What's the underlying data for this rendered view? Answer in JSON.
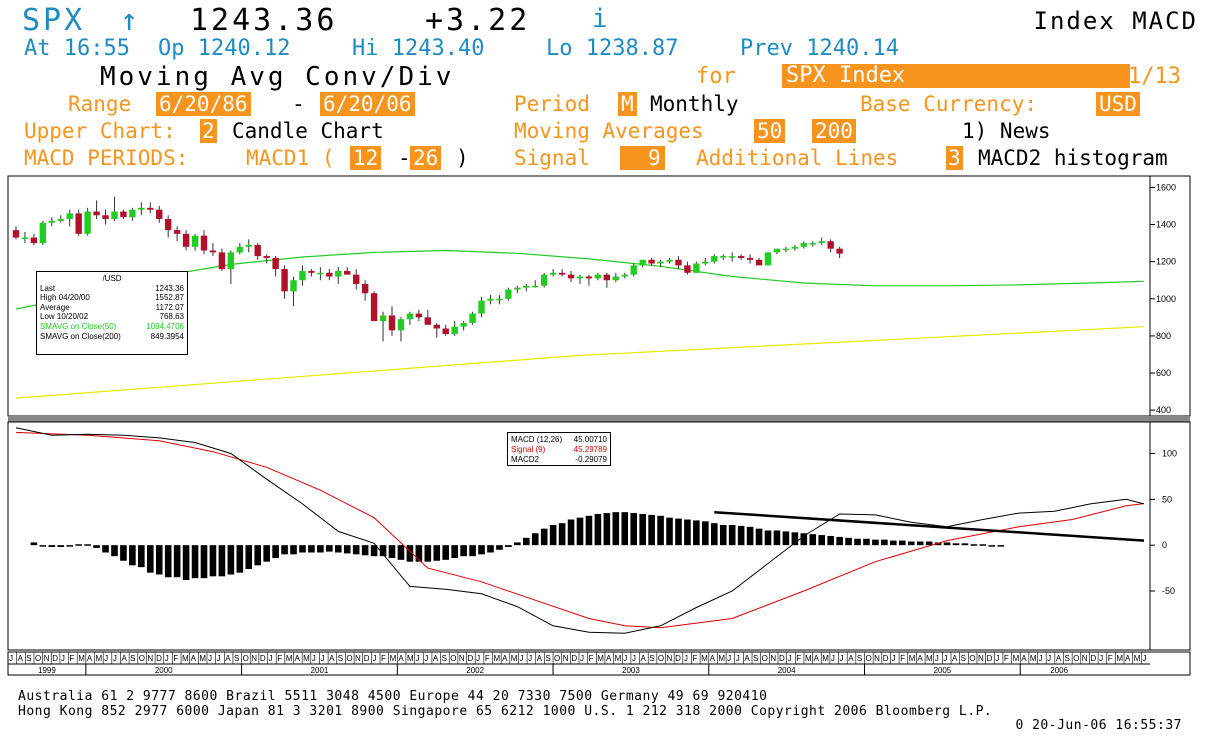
{
  "header": {
    "ticker": "SPX",
    "arrow": "↑",
    "last": "1243.36",
    "change": "+3.22",
    "info_icon": "i",
    "right_title": "Index  MACD",
    "time": "At 16:55",
    "open": "Op 1240.12",
    "high": "Hi 1243.40",
    "low": "Lo 1238.87",
    "prev": "Prev 1240.14"
  },
  "title": {
    "main": "Moving Avg Conv/Div",
    "for": "for",
    "security": "SPX Index",
    "page": "1/13"
  },
  "settings": {
    "range_label": "Range",
    "range_start": "6/20/86",
    "range_dash": "-",
    "range_end": "6/20/06",
    "period_label": "Period",
    "period_code": "M",
    "period_value": "Monthly",
    "currency_label": "Base Currency:",
    "currency_value": "USD",
    "upper_label": "Upper Chart:",
    "upper_code": "2",
    "upper_value": "Candle Chart",
    "ma_label": "Moving Averages",
    "ma1": "50",
    "ma2": "200",
    "news": "1) News",
    "macd_label": "MACD PERIODS:",
    "macd1_label": "MACD1 (",
    "macd_p1": "12",
    "macd_dash": "-",
    "macd_p2": "26",
    "macd_close": ")",
    "signal_label": "Signal",
    "signal_value": "9",
    "addl_label": "Additional Lines",
    "addl_code": "3",
    "addl_value": "MACD2 histogram"
  },
  "upper_legend": {
    "title": "/USD",
    "rows": [
      {
        "label": "Last",
        "value": "1243.36",
        "color": "#000000"
      },
      {
        "label": "High  04/20/00",
        "value": "1552.87",
        "color": "#000000"
      },
      {
        "label": "Average",
        "value": "1172.07",
        "color": "#000000"
      },
      {
        "label": "Low  10/20/02",
        "value": "768.63",
        "color": "#000000"
      },
      {
        "label": "SMAVG on Close(50)",
        "value": "1094.4706",
        "color": "#22cc22"
      },
      {
        "label": "SMAVG on Close(200)",
        "value": "849.3954",
        "color": "#000000"
      }
    ]
  },
  "lower_legend": {
    "rows": [
      {
        "label": "MACD (12,26)",
        "value": "45.00710",
        "color": "#000000"
      },
      {
        "label": "Signal (9)",
        "value": "45.29789",
        "color": "#dd0000"
      },
      {
        "label": "MACD2",
        "value": "-0.29079",
        "color": "#000000"
      }
    ]
  },
  "footer": {
    "line1": "Australia 61 2 9777 8600          Brazil 5511 3048 4500          Europe 44 20 7330 7500          Germany 49 69 920410",
    "line2": "Hong Kong 852 2977 6000 Japan 81 3 3201 8900 Singapore 65 6212 1000 U.S. 1 212 318 2000 Copyright 2006 Bloomberg L.P.",
    "line3": "0 20-Jun-06 16:55:37"
  },
  "chart_data": [
    {
      "type": "candlestick",
      "title": "",
      "ylim": [
        390,
        1640
      ],
      "yticks": [
        400,
        600,
        800,
        1000,
        1200,
        1400,
        1600
      ],
      "x_start": "1999-07",
      "colors": {
        "up": "#22cc22",
        "down": "#b0102a",
        "sma50": "#22cc22",
        "sma200": "#e8e800"
      },
      "candles": [
        [
          1370,
          1390,
          1320,
          1330
        ],
        [
          1330,
          1360,
          1300,
          1330
        ],
        [
          1330,
          1350,
          1290,
          1300
        ],
        [
          1300,
          1420,
          1290,
          1410
        ],
        [
          1410,
          1440,
          1390,
          1420
        ],
        [
          1420,
          1450,
          1410,
          1430
        ],
        [
          1430,
          1480,
          1390,
          1460
        ],
        [
          1460,
          1480,
          1340,
          1350
        ],
        [
          1350,
          1490,
          1340,
          1470
        ],
        [
          1470,
          1530,
          1430,
          1450
        ],
        [
          1450,
          1480,
          1400,
          1430
        ],
        [
          1430,
          1550,
          1420,
          1470
        ],
        [
          1470,
          1480,
          1430,
          1440
        ],
        [
          1440,
          1490,
          1420,
          1480
        ],
        [
          1480,
          1520,
          1450,
          1490
        ],
        [
          1490,
          1520,
          1460,
          1480
        ],
        [
          1480,
          1500,
          1410,
          1430
        ],
        [
          1430,
          1450,
          1330,
          1370
        ],
        [
          1370,
          1390,
          1310,
          1350
        ],
        [
          1350,
          1370,
          1260,
          1280
        ],
        [
          1280,
          1350,
          1260,
          1340
        ],
        [
          1340,
          1370,
          1240,
          1260
        ],
        [
          1260,
          1300,
          1230,
          1250
        ],
        [
          1250,
          1270,
          1150,
          1160
        ],
        [
          1160,
          1260,
          1080,
          1250
        ],
        [
          1250,
          1300,
          1240,
          1280
        ],
        [
          1280,
          1320,
          1250,
          1290
        ],
        [
          1290,
          1300,
          1210,
          1230
        ],
        [
          1230,
          1240,
          1190,
          1220
        ],
        [
          1220,
          1230,
          1120,
          1160
        ],
        [
          1160,
          1180,
          1000,
          1040
        ],
        [
          1040,
          1120,
          960,
          1100
        ],
        [
          1100,
          1180,
          1070,
          1150
        ],
        [
          1150,
          1160,
          1120,
          1140
        ],
        [
          1140,
          1170,
          1100,
          1140
        ],
        [
          1140,
          1160,
          1100,
          1120
        ],
        [
          1120,
          1170,
          1080,
          1150
        ],
        [
          1150,
          1170,
          1130,
          1130
        ],
        [
          1130,
          1160,
          1050,
          1080
        ],
        [
          1080,
          1100,
          990,
          1030
        ],
        [
          1030,
          1040,
          880,
          880
        ],
        [
          880,
          930,
          770,
          910
        ],
        [
          910,
          960,
          800,
          830
        ],
        [
          830,
          900,
          770,
          890
        ],
        [
          890,
          930,
          860,
          920
        ],
        [
          920,
          940,
          880,
          900
        ],
        [
          900,
          940,
          860,
          860
        ],
        [
          860,
          870,
          790,
          840
        ],
        [
          840,
          860,
          800,
          810
        ],
        [
          810,
          880,
          800,
          850
        ],
        [
          850,
          880,
          830,
          870
        ],
        [
          870,
          930,
          860,
          920
        ],
        [
          920,
          1010,
          900,
          990
        ],
        [
          990,
          1020,
          970,
          1000
        ],
        [
          1000,
          1020,
          970,
          1000
        ],
        [
          1000,
          1060,
          990,
          1050
        ],
        [
          1050,
          1070,
          1030,
          1060
        ],
        [
          1060,
          1080,
          1040,
          1070
        ],
        [
          1070,
          1100,
          1060,
          1070
        ],
        [
          1070,
          1140,
          1060,
          1130
        ],
        [
          1130,
          1160,
          1120,
          1140
        ],
        [
          1140,
          1160,
          1120,
          1130
        ],
        [
          1130,
          1150,
          1090,
          1110
        ],
        [
          1110,
          1130,
          1080,
          1120
        ],
        [
          1120,
          1130,
          1070,
          1110
        ],
        [
          1110,
          1140,
          1100,
          1130
        ],
        [
          1130,
          1140,
          1060,
          1100
        ],
        [
          1100,
          1140,
          1090,
          1120
        ],
        [
          1120,
          1140,
          1110,
          1130
        ],
        [
          1130,
          1190,
          1120,
          1180
        ],
        [
          1180,
          1210,
          1170,
          1210
        ],
        [
          1210,
          1220,
          1180,
          1190
        ],
        [
          1190,
          1210,
          1170,
          1200
        ],
        [
          1200,
          1220,
          1190,
          1210
        ],
        [
          1210,
          1230,
          1160,
          1180
        ],
        [
          1180,
          1200,
          1130,
          1140
        ],
        [
          1140,
          1200,
          1140,
          1190
        ],
        [
          1190,
          1220,
          1180,
          1200
        ],
        [
          1200,
          1240,
          1190,
          1230
        ],
        [
          1230,
          1240,
          1210,
          1230
        ],
        [
          1230,
          1250,
          1200,
          1230
        ],
        [
          1230,
          1240,
          1210,
          1220
        ],
        [
          1220,
          1240,
          1190,
          1210
        ],
        [
          1210,
          1220,
          1180,
          1180
        ],
        [
          1180,
          1250,
          1180,
          1250
        ],
        [
          1250,
          1270,
          1240,
          1270
        ],
        [
          1270,
          1280,
          1250,
          1270
        ],
        [
          1270,
          1290,
          1260,
          1280
        ],
        [
          1280,
          1310,
          1270,
          1300
        ],
        [
          1300,
          1310,
          1280,
          1300
        ],
        [
          1300,
          1330,
          1290,
          1310
        ],
        [
          1310,
          1320,
          1250,
          1270
        ],
        [
          1270,
          1280,
          1220,
          1243.36
        ]
      ],
      "sma50": [
        [
          0,
          945
        ],
        [
          8,
          1020
        ],
        [
          16,
          1120
        ],
        [
          24,
          1185
        ],
        [
          32,
          1225
        ],
        [
          40,
          1250
        ],
        [
          48,
          1260
        ],
        [
          56,
          1245
        ],
        [
          64,
          1215
        ],
        [
          72,
          1175
        ],
        [
          80,
          1120
        ],
        [
          88,
          1085
        ],
        [
          96,
          1070
        ],
        [
          104,
          1070
        ],
        [
          112,
          1075
        ],
        [
          120,
          1085
        ],
        [
          126,
          1094.47
        ]
      ],
      "sma200": [
        [
          0,
          465
        ],
        [
          63,
          695
        ],
        [
          126,
          849.4
        ]
      ]
    },
    {
      "type": "macd",
      "title": "",
      "ylim": [
        -110,
        130
      ],
      "yticks": [
        -50,
        0,
        50,
        100
      ],
      "colors": {
        "macd": "#000000",
        "signal": "#dd0000",
        "hist": "#000000",
        "trend": "#000000"
      },
      "macd": [
        [
          0,
          128
        ],
        [
          4,
          120
        ],
        [
          8,
          121
        ],
        [
          12,
          120
        ],
        [
          16,
          117
        ],
        [
          20,
          112
        ],
        [
          24,
          100
        ],
        [
          28,
          72
        ],
        [
          32,
          45
        ],
        [
          36,
          15
        ],
        [
          40,
          2
        ],
        [
          44,
          -45
        ],
        [
          48,
          -48
        ],
        [
          52,
          -53
        ],
        [
          56,
          -67
        ],
        [
          60,
          -88
        ],
        [
          64,
          -95
        ],
        [
          68,
          -96
        ],
        [
          72,
          -88
        ],
        [
          76,
          -68
        ],
        [
          80,
          -50
        ],
        [
          84,
          -20
        ],
        [
          88,
          10
        ],
        [
          92,
          34
        ],
        [
          96,
          33
        ],
        [
          100,
          25
        ],
        [
          104,
          20
        ],
        [
          108,
          28
        ],
        [
          112,
          35
        ],
        [
          116,
          37
        ],
        [
          120,
          45
        ],
        [
          124,
          50
        ],
        [
          126,
          45.01
        ]
      ],
      "signal": [
        [
          0,
          123
        ],
        [
          8,
          120
        ],
        [
          16,
          114
        ],
        [
          22,
          102
        ],
        [
          28,
          85
        ],
        [
          34,
          60
        ],
        [
          40,
          30
        ],
        [
          46,
          -25
        ],
        [
          52,
          -40
        ],
        [
          58,
          -60
        ],
        [
          64,
          -80
        ],
        [
          68,
          -88
        ],
        [
          72,
          -90
        ],
        [
          80,
          -80
        ],
        [
          88,
          -50
        ],
        [
          96,
          -18
        ],
        [
          104,
          5
        ],
        [
          112,
          20
        ],
        [
          118,
          28
        ],
        [
          124,
          43
        ],
        [
          126,
          45.3
        ]
      ],
      "hist": [
        3,
        0,
        -2,
        -2,
        0,
        1,
        1,
        -3,
        -8,
        -12,
        -17,
        -22,
        -24,
        -30,
        -32,
        -35,
        -35,
        -38,
        -36,
        -36,
        -34,
        -34,
        -32,
        -30,
        -26,
        -22,
        -18,
        -14,
        -10,
        -10,
        -8,
        -8,
        -8,
        -7,
        -8,
        -9,
        -10,
        -11,
        -12,
        -12,
        -14,
        -16,
        -18,
        -18,
        -18,
        -17,
        -16,
        -14,
        -12,
        -12,
        -10,
        -8,
        -5,
        -2,
        3,
        8,
        13,
        18,
        22,
        24,
        28,
        30,
        32,
        34,
        35,
        36,
        36,
        35,
        34,
        33,
        32,
        30,
        29,
        28,
        27,
        26,
        24,
        22,
        22,
        21,
        20,
        18,
        16,
        16,
        15,
        14,
        13,
        12,
        11,
        10,
        9,
        8,
        7,
        7,
        6,
        6,
        5,
        5,
        4,
        4,
        4,
        3,
        3,
        2,
        2,
        1,
        1,
        0,
        -0.29
      ],
      "hist_start": 2,
      "trendline": [
        [
          78,
          36
        ],
        [
          126,
          5
        ]
      ]
    }
  ],
  "x_axis": {
    "month_letters": [
      "J",
      "A",
      "S",
      "O",
      "N",
      "D",
      "J",
      "F",
      "M",
      "A",
      "M",
      "J",
      "J",
      "A",
      "S",
      "O",
      "N",
      "D",
      "J",
      "F",
      "M",
      "A",
      "M",
      "J",
      "J",
      "A",
      "S",
      "O",
      "N",
      "D",
      "J",
      "F",
      "M",
      "A",
      "M",
      "J",
      "J",
      "A",
      "S",
      "O",
      "N",
      "D",
      "J",
      "F",
      "M",
      "A",
      "M",
      "J",
      "J",
      "A",
      "S",
      "O",
      "N",
      "D",
      "J",
      "F",
      "M",
      "A",
      "M",
      "J",
      "J",
      "A",
      "S",
      "O",
      "N",
      "D",
      "J",
      "F",
      "M",
      "A",
      "M",
      "J",
      "J",
      "A",
      "S",
      "O",
      "N",
      "D",
      "J",
      "F",
      "M",
      "A",
      "M",
      "J",
      "J",
      "A",
      "S",
      "O",
      "N",
      "D",
      "J",
      "F",
      "M",
      "A",
      "M",
      "J",
      "J",
      "A",
      "S",
      "O",
      "N",
      "D",
      "J",
      "F",
      "M",
      "A",
      "M",
      "J",
      "J",
      "A",
      "S",
      "O",
      "N",
      "D",
      "J",
      "F",
      "M",
      "A",
      "M",
      "J",
      "J",
      "A",
      "S",
      "O",
      "N",
      "D",
      "J",
      "F",
      "M",
      "A",
      "M",
      "J"
    ],
    "years": [
      {
        "label": "1999",
        "start": 0,
        "end": 6
      },
      {
        "label": "2000",
        "start": 6,
        "end": 18
      },
      {
        "label": "2001",
        "start": 18,
        "end": 30
      },
      {
        "label": "2002",
        "start": 30,
        "end": 42
      },
      {
        "label": "2003",
        "start": 42,
        "end": 54
      },
      {
        "label": "2004",
        "start": 54,
        "end": 66
      },
      {
        "label": "2005",
        "start": 66,
        "end": 78
      },
      {
        "label": "2006",
        "start": 78,
        "end": 84
      }
    ]
  }
}
